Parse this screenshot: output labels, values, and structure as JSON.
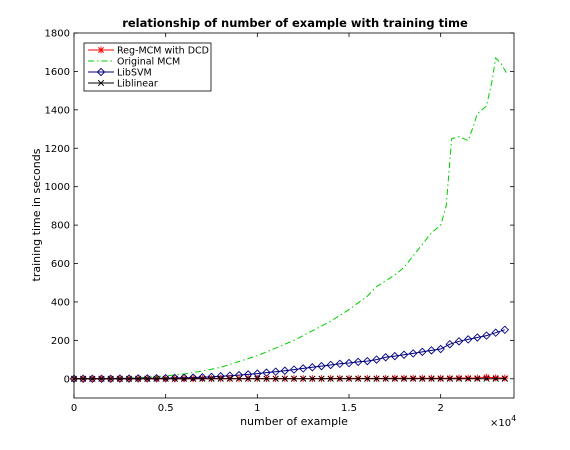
{
  "chart_data": {
    "type": "line",
    "title": "relationship of number of example with training time",
    "xlabel": "number of example",
    "ylabel": "training time in seconds",
    "x_multiplier_label": "×10",
    "x_multiplier_exponent": "4",
    "xlim": [
      0,
      2.4
    ],
    "ylim": [
      -100,
      1800
    ],
    "xticks": [
      0,
      0.5,
      1,
      1.5,
      2
    ],
    "xtick_labels": [
      "0",
      "0.5",
      "1",
      "1.5",
      "2"
    ],
    "yticks": [
      0,
      200,
      400,
      600,
      800,
      1000,
      1200,
      1400,
      1600,
      1800
    ],
    "ytick_labels": [
      "0",
      "200",
      "400",
      "600",
      "800",
      "1000",
      "1200",
      "1400",
      "1600",
      "1800"
    ],
    "legend_position": "top-left",
    "series": [
      {
        "name": "Reg-MCM with DCD",
        "color": "#ff0000",
        "marker": "star",
        "linestyle": "solid",
        "x": [
          0,
          0.05,
          0.1,
          0.15,
          0.2,
          0.25,
          0.3,
          0.35,
          0.4,
          0.45,
          0.5,
          0.55,
          0.6,
          0.65,
          0.7,
          0.75,
          0.8,
          0.85,
          0.9,
          0.95,
          1.0,
          1.05,
          1.1,
          1.15,
          1.2,
          1.25,
          1.3,
          1.35,
          1.4,
          1.45,
          1.5,
          1.55,
          1.6,
          1.65,
          1.7,
          1.75,
          1.8,
          1.85,
          1.9,
          1.95,
          2.0,
          2.05,
          2.1,
          2.15,
          2.2,
          2.25,
          2.3,
          2.35
        ],
        "y": [
          0,
          0,
          0,
          0,
          0,
          0,
          0,
          0,
          0,
          0,
          0,
          0,
          0,
          0,
          1,
          1,
          1,
          1,
          1,
          1,
          1,
          1,
          1,
          1,
          1,
          1,
          1,
          1,
          2,
          2,
          2,
          2,
          2,
          2,
          2,
          3,
          3,
          3,
          3,
          3,
          3,
          3,
          4,
          4,
          4,
          8,
          5,
          4
        ]
      },
      {
        "name": "Original MCM",
        "color": "#00cc00",
        "marker": "none",
        "linestyle": "dashdot",
        "x": [
          0,
          0.1,
          0.2,
          0.3,
          0.4,
          0.5,
          0.6,
          0.7,
          0.8,
          0.9,
          1.0,
          1.1,
          1.2,
          1.3,
          1.4,
          1.5,
          1.6,
          1.65,
          1.7,
          1.75,
          1.8,
          1.85,
          1.9,
          1.95,
          2.0,
          2.03,
          2.06,
          2.1,
          2.15,
          2.18,
          2.2,
          2.25,
          2.28,
          2.3,
          2.33,
          2.36
        ],
        "y": [
          0,
          0,
          2,
          4,
          8,
          15,
          25,
          40,
          60,
          90,
          120,
          160,
          200,
          250,
          300,
          360,
          430,
          480,
          510,
          540,
          580,
          640,
          700,
          760,
          800,
          900,
          1250,
          1260,
          1240,
          1320,
          1380,
          1420,
          1550,
          1670,
          1640,
          1590
        ]
      },
      {
        "name": "LibSVM",
        "color": "#000080",
        "marker": "diamond",
        "linestyle": "solid",
        "x": [
          0,
          0.05,
          0.1,
          0.15,
          0.2,
          0.25,
          0.3,
          0.35,
          0.4,
          0.45,
          0.5,
          0.55,
          0.6,
          0.65,
          0.7,
          0.75,
          0.8,
          0.85,
          0.9,
          0.95,
          1.0,
          1.05,
          1.1,
          1.15,
          1.2,
          1.25,
          1.3,
          1.35,
          1.4,
          1.45,
          1.5,
          1.55,
          1.6,
          1.65,
          1.7,
          1.75,
          1.8,
          1.85,
          1.9,
          1.95,
          2.0,
          2.05,
          2.1,
          2.15,
          2.2,
          2.25,
          2.3,
          2.35
        ],
        "y": [
          0,
          0,
          0,
          0,
          0,
          1,
          1,
          2,
          2,
          3,
          3,
          4,
          5,
          6,
          8,
          10,
          13,
          16,
          19,
          23,
          27,
          32,
          37,
          42,
          48,
          54,
          60,
          66,
          72,
          78,
          82,
          88,
          92,
          100,
          112,
          118,
          125,
          132,
          140,
          148,
          155,
          180,
          195,
          205,
          215,
          225,
          240,
          255
        ]
      },
      {
        "name": "Liblinear",
        "color": "#000000",
        "marker": "x",
        "linestyle": "solid",
        "x": [
          0,
          0.05,
          0.1,
          0.15,
          0.2,
          0.25,
          0.3,
          0.35,
          0.4,
          0.45,
          0.5,
          0.55,
          0.6,
          0.65,
          0.7,
          0.75,
          0.8,
          0.85,
          0.9,
          0.95,
          1.0,
          1.05,
          1.1,
          1.15,
          1.2,
          1.25,
          1.3,
          1.35,
          1.4,
          1.45,
          1.5,
          1.55,
          1.6,
          1.65,
          1.7,
          1.75,
          1.8,
          1.85,
          1.9,
          1.95,
          2.0,
          2.05,
          2.1,
          2.15,
          2.2,
          2.25,
          2.3,
          2.35
        ],
        "y": [
          0,
          0,
          0,
          0,
          0,
          0,
          0,
          0,
          0,
          0,
          0,
          0,
          0,
          0,
          0,
          0,
          0,
          0,
          0,
          0,
          0,
          0,
          0,
          0,
          0,
          0,
          0,
          0,
          0,
          0,
          0,
          0,
          0,
          0,
          0,
          0,
          0,
          0,
          0,
          0,
          0,
          0,
          0,
          0,
          0,
          0,
          0,
          0
        ]
      }
    ]
  }
}
